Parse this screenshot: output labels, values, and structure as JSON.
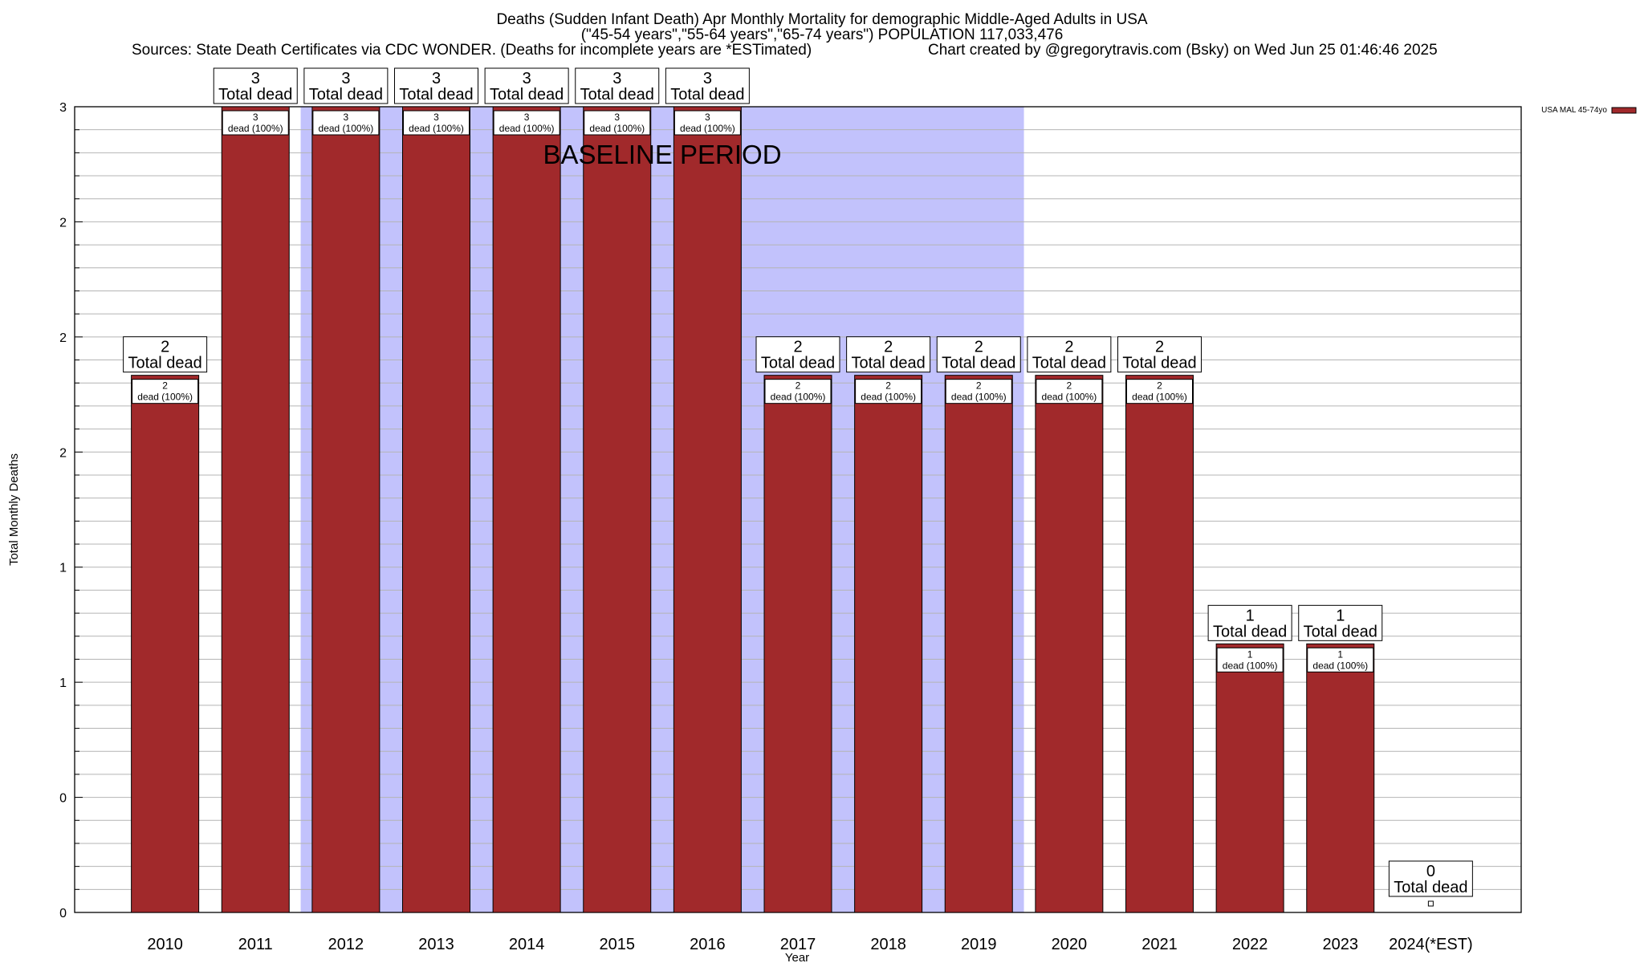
{
  "chart_data": {
    "type": "bar",
    "title_lines": [
      "Deaths (Sudden Infant Death) Apr Monthly Mortality for demographic Middle-Aged Adults in USA",
      "(\"45-54 years\",\"55-64 years\",\"65-74 years\") POPULATION 117,033,476"
    ],
    "sources": "Sources: State Death Certificates via CDC WONDER. (Deaths for incomplete years are *ESTimated)",
    "credit": "Chart created by @gregorytravis.com (Bsky) on Wed Jun 25 01:46:46 2025",
    "xlabel": "Year",
    "ylabel": "Total Monthly Deaths",
    "categories": [
      "2010",
      "2011",
      "2012",
      "2013",
      "2014",
      "2015",
      "2016",
      "2017",
      "2018",
      "2019",
      "2020",
      "2021",
      "2022",
      "2023",
      "2024(*EST)"
    ],
    "series": [
      {
        "name": "USA MAL 45-74yo",
        "color": "#a1292b",
        "values": [
          2,
          3,
          3,
          3,
          3,
          3,
          3,
          2,
          2,
          2,
          2,
          2,
          1,
          1,
          0
        ]
      }
    ],
    "ylim": [
      0,
      3
    ],
    "ytick_labels": [
      "0",
      "0",
      "1",
      "1",
      "2",
      "2",
      "2",
      "3"
    ],
    "total_label_suffix": "Total dead",
    "inner_label_suffix": "dead (100%)",
    "baseline_label": "BASELINE PERIOD",
    "baseline_range": [
      "2012",
      "2019"
    ],
    "baseline_color": "#c2c2fc",
    "grid": true,
    "legend_position": "top-right"
  }
}
